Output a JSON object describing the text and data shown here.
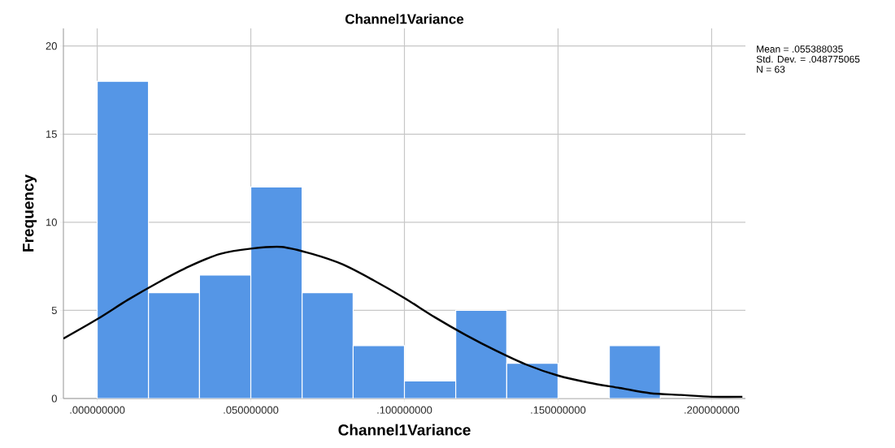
{
  "chart_data": {
    "type": "histogram",
    "title": "Channel1Variance",
    "xlabel": "Channel1Variance",
    "ylabel": "Frequency",
    "annotations": [
      "Mean = .055388035",
      "Std. Dev. = .048775065",
      "N = 63"
    ],
    "series": [
      {
        "color": "#5596e6",
        "bins": [
          0,
          0.0167,
          0.0333,
          0.05,
          0.0667,
          0.0833,
          0.1,
          0.1167,
          0.1333,
          0.15,
          0.1667,
          0.1833
        ],
        "values": [
          18,
          6,
          7,
          12,
          6,
          3,
          1,
          5,
          2,
          0,
          3
        ]
      },
      {
        "type": "line",
        "color": "#000000",
        "x": [
          -0.011,
          0,
          0.01,
          0.02,
          0.03,
          0.04,
          0.05,
          0.06,
          0.07,
          0.08,
          0.09,
          0.1,
          0.11,
          0.12,
          0.13,
          0.14,
          0.15,
          0.16,
          0.17,
          0.18,
          0.19,
          0.2,
          0.21
        ],
        "values": [
          3.4,
          4.5,
          5.6,
          6.6,
          7.5,
          8.2,
          8.5,
          8.6,
          8.2,
          7.6,
          6.7,
          5.7,
          4.6,
          3.6,
          2.7,
          1.9,
          1.3,
          0.9,
          0.6,
          0.3,
          0.2,
          0.1,
          0.1
        ]
      }
    ],
    "xlim": [
      -0.011,
      0.211
    ],
    "ylim": [
      0,
      21
    ],
    "xticks": [
      {
        "value": 0,
        "label": ".000000000"
      },
      {
        "value": 0.05,
        "label": ".050000000"
      },
      {
        "value": 0.1,
        "label": ".100000000"
      },
      {
        "value": 0.15,
        "label": ".150000000"
      },
      {
        "value": 0.2,
        "label": ".200000000"
      }
    ],
    "yticks": [
      0,
      5,
      10,
      15,
      20
    ],
    "grid": true
  }
}
